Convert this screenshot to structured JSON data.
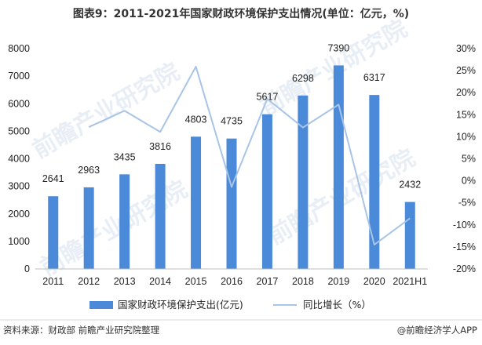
{
  "chart_data": {
    "type": "bar+line",
    "title": "图表9：2011-2021年国家财政环境保护支出情况(单位：亿元，%)",
    "categories": [
      "2011",
      "2012",
      "2013",
      "2014",
      "2015",
      "2016",
      "2017",
      "2018",
      "2019",
      "2020",
      "2021H1"
    ],
    "series": [
      {
        "name": "国家财政环境保护支出(亿元)",
        "type": "bar",
        "axis": "left",
        "color": "#4a8ad8",
        "values": [
          2641,
          2963,
          3435,
          3816,
          4803,
          4735,
          5617,
          6298,
          7390,
          6317,
          2432
        ]
      },
      {
        "name": "同比增长（%）",
        "type": "line",
        "axis": "right",
        "color": "#a8c4e6",
        "values": [
          null,
          12.2,
          15.9,
          11.1,
          25.9,
          -1.4,
          18.6,
          12.1,
          17.3,
          -14.5,
          -8.5
        ]
      }
    ],
    "y_left": {
      "min": 0,
      "max": 8000,
      "step": 1000,
      "ticks": [
        "0",
        "1000",
        "2000",
        "3000",
        "4000",
        "5000",
        "6000",
        "7000",
        "8000"
      ]
    },
    "y_right": {
      "min": -20,
      "max": 30,
      "step": 5,
      "ticks": [
        "-20%",
        "-15%",
        "-10%",
        "-5%",
        "0%",
        "5%",
        "10%",
        "15%",
        "20%",
        "25%",
        "30%"
      ]
    },
    "grid": false,
    "legend_position": "bottom"
  },
  "footer": {
    "source": "资料来源：财政部 前瞻产业研究院整理",
    "brand": "@前瞻经济学人APP"
  },
  "watermark": "前瞻产业研究院"
}
